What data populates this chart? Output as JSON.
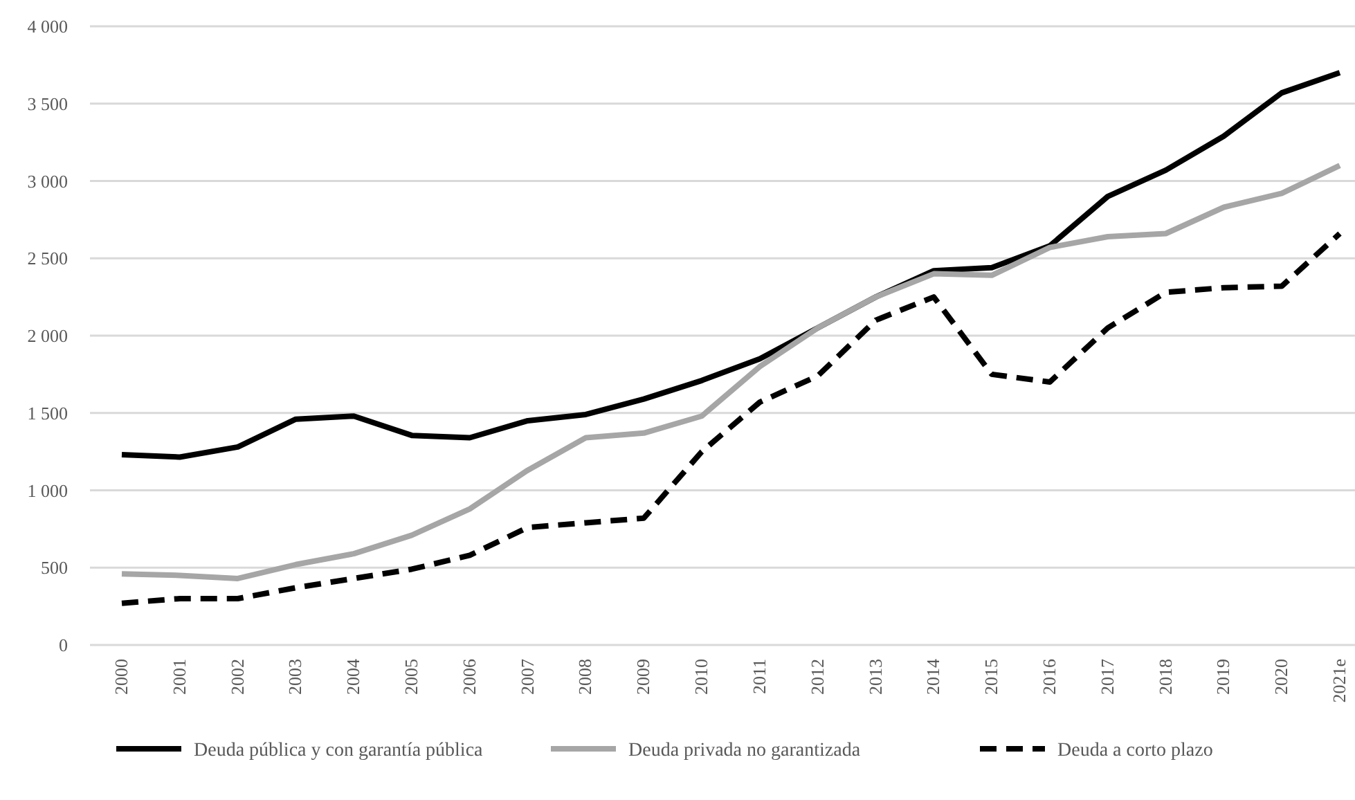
{
  "chart_data": {
    "type": "line",
    "categories": [
      "2000",
      "2001",
      "2002",
      "2003",
      "2004",
      "2005",
      "2006",
      "2007",
      "2008",
      "2009",
      "2010",
      "2011",
      "2012",
      "2013",
      "2014",
      "2015",
      "2016",
      "2017",
      "2018",
      "2019",
      "2020",
      "2021e"
    ],
    "series": [
      {
        "name": "Deuda pública y con garantía pública",
        "color": "#000000",
        "line_style": "solid",
        "values": [
          1230,
          1215,
          1280,
          1460,
          1480,
          1355,
          1340,
          1450,
          1490,
          1590,
          1710,
          1850,
          2050,
          2250,
          2420,
          2440,
          2580,
          2900,
          3070,
          3290,
          3570,
          3700
        ]
      },
      {
        "name": "Deuda privada no garantizada",
        "color": "#a6a6a6",
        "line_style": "solid",
        "values": [
          460,
          450,
          430,
          520,
          590,
          710,
          880,
          1130,
          1340,
          1370,
          1480,
          1800,
          2050,
          2250,
          2400,
          2390,
          2570,
          2640,
          2660,
          2830,
          2920,
          3100
        ]
      },
      {
        "name": "Deuda a corto plazo",
        "color": "#000000",
        "line_style": "dashed",
        "values": [
          270,
          300,
          300,
          370,
          430,
          490,
          580,
          760,
          790,
          820,
          1250,
          1570,
          1740,
          2100,
          2250,
          1750,
          1700,
          2050,
          2280,
          2310,
          2320,
          2660
        ]
      }
    ],
    "ylim": [
      0,
      4000
    ],
    "yticks": [
      {
        "value": 0,
        "label": "0"
      },
      {
        "value": 500,
        "label": "500"
      },
      {
        "value": 1000,
        "label": "1 000"
      },
      {
        "value": 1500,
        "label": "1 500"
      },
      {
        "value": 2000,
        "label": "2 000"
      },
      {
        "value": 2500,
        "label": "2 500"
      },
      {
        "value": 3000,
        "label": "3 000"
      },
      {
        "value": 3500,
        "label": "3 500"
      },
      {
        "value": 4000,
        "label": "4 000"
      }
    ],
    "grid": "y",
    "legend": "bottom",
    "marker": "none"
  }
}
